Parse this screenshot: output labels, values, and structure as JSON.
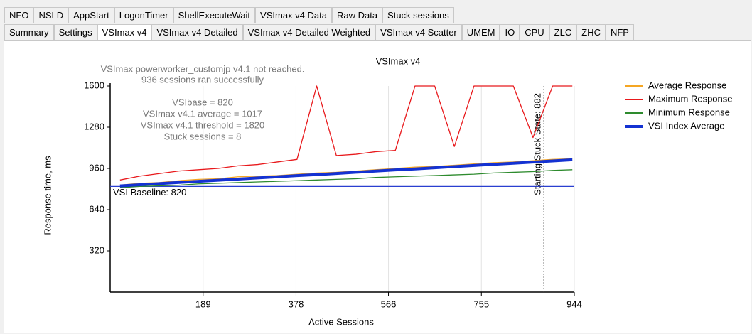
{
  "tabs": {
    "row1": [
      "NFO",
      "NSLD",
      "AppStart",
      "LogonTimer",
      "ShellExecuteWait",
      "VSImax v4 Data",
      "Raw Data",
      "Stuck sessions"
    ],
    "row2": [
      "Summary",
      "Settings",
      "VSImax v4",
      "VSImax v4 Detailed",
      "VSImax v4 Detailed Weighted",
      "VSImax v4 Scatter",
      "UMEM",
      "IO",
      "CPU",
      "ZLC",
      "ZHC",
      "NFP"
    ],
    "selected": "VSImax v4"
  },
  "chart_data": {
    "type": "line",
    "title": "VSImax v4",
    "x_label": "Active Sessions",
    "y_label": "Response time, ms",
    "annotations": [
      "VSImax powerworker_customjp v4.1 not reached.",
      "936 sessions ran successfully",
      "VSIbase = 820",
      "VSImax v4.1 average = 1017",
      "VSImax v4.1 threshold = 1820",
      "Stuck sessions = 8"
    ],
    "baseline": {
      "value": 820,
      "label": "VSI Baseline: 820",
      "color": "#2a3fd0"
    },
    "stuck_start": {
      "value": 882,
      "label": "Starting Stuck State: 882"
    },
    "x": [
      20,
      60,
      100,
      140,
      180,
      220,
      260,
      300,
      340,
      380,
      420,
      460,
      500,
      540,
      580,
      620,
      660,
      700,
      740,
      780,
      820,
      860,
      900,
      940
    ],
    "series": [
      {
        "name": "Average Response",
        "color": "#f5a623",
        "values": [
          830,
          845,
          850,
          865,
          875,
          880,
          895,
          900,
          905,
          915,
          925,
          930,
          940,
          950,
          960,
          970,
          975,
          985,
          995,
          1005,
          1010,
          1020,
          1030,
          1035
        ]
      },
      {
        "name": "Maximum Response",
        "color": "#e8191c",
        "values": [
          870,
          900,
          920,
          940,
          950,
          960,
          980,
          990,
          1010,
          1030,
          1600,
          1060,
          1070,
          1090,
          1100,
          1600,
          1600,
          1130,
          1600,
          1600,
          1600,
          1200,
          1600,
          1600
        ]
      },
      {
        "name": "Minimum Response",
        "color": "#2e8b2e",
        "values": [
          810,
          820,
          825,
          830,
          840,
          845,
          850,
          855,
          860,
          865,
          870,
          875,
          880,
          890,
          895,
          900,
          905,
          910,
          915,
          925,
          930,
          935,
          945,
          950
        ]
      },
      {
        "name": "VSI Index Average",
        "color": "#1432d2",
        "values": [
          824,
          833,
          842,
          851,
          860,
          868,
          877,
          886,
          895,
          904,
          912,
          921,
          930,
          939,
          948,
          956,
          965,
          974,
          983,
          992,
          1000,
          1009,
          1018,
          1027
        ]
      }
    ],
    "xlim": [
      0,
      944
    ],
    "xticks": [
      189,
      378,
      566,
      755,
      944
    ],
    "ylim": [
      0,
      1600
    ],
    "yticks": [
      320,
      640,
      960,
      1280,
      1600
    ],
    "grid": true,
    "legend": "right"
  }
}
